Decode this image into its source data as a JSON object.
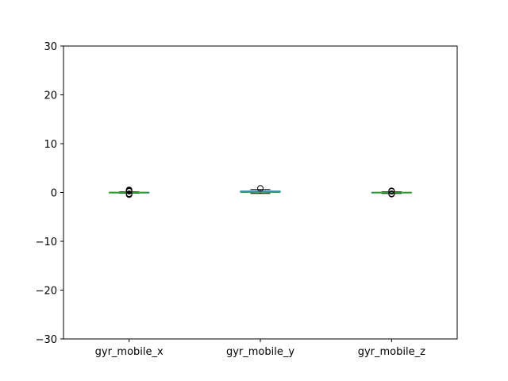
{
  "chart_data": {
    "type": "box",
    "title": "",
    "xlabel": "",
    "ylabel": "",
    "ylim": [
      -30,
      30
    ],
    "yticks": [
      -30,
      -20,
      -10,
      0,
      10,
      20,
      30
    ],
    "grid": false,
    "categories": [
      "gyr_mobile_x",
      "gyr_mobile_y",
      "gyr_mobile_z"
    ],
    "boxes": [
      {
        "name": "gyr_mobile_x",
        "q1": -0.05,
        "median": 0.0,
        "q3": 0.05,
        "whisker_low": -0.15,
        "whisker_high": 0.15,
        "outliers": [
          0.55,
          0.45,
          0.35,
          0.25,
          -0.25,
          -0.35,
          -0.45
        ]
      },
      {
        "name": "gyr_mobile_y",
        "q1": 0.02,
        "median": 0.1,
        "q3": 0.3,
        "whisker_low": -0.2,
        "whisker_high": 0.6,
        "outliers": [
          0.85
        ]
      },
      {
        "name": "gyr_mobile_z",
        "q1": -0.1,
        "median": -0.02,
        "q3": 0.05,
        "whisker_low": -0.2,
        "whisker_high": 0.15,
        "outliers": [
          0.35,
          0.25,
          -0.25,
          -0.35
        ]
      }
    ],
    "colors": {
      "box": "#1f77b4",
      "median": "#2ca02c",
      "whisker": "#000000",
      "outlier": "#000000"
    }
  }
}
